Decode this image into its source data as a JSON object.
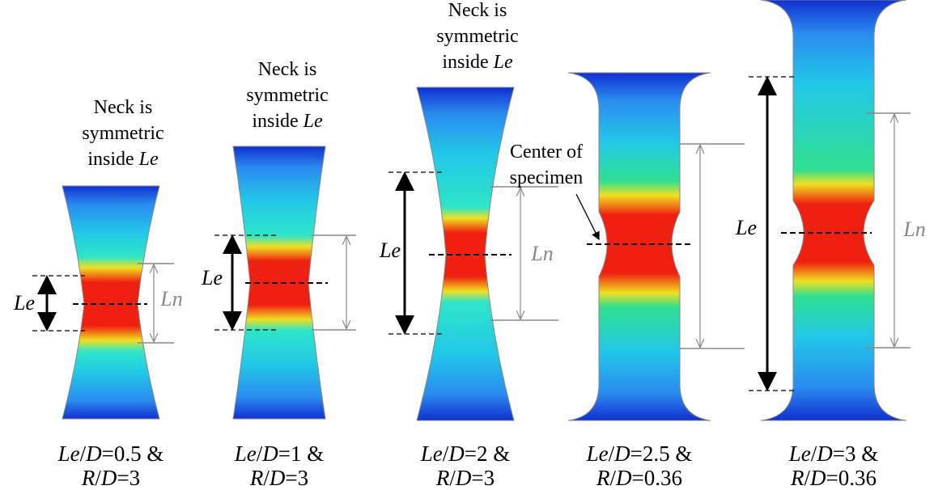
{
  "specimens": [
    {
      "note": [
        [
          {
            "text": "Neck is"
          }
        ],
        [
          {
            "text": "symmetric"
          }
        ],
        [
          {
            "text": "inside "
          },
          {
            "text": "Le",
            "italic": true
          }
        ]
      ],
      "le_label": "Le",
      "ln_label": "Ln",
      "caption": [
        [
          {
            "text": "Le",
            "italic": true
          },
          {
            "text": "/"
          },
          {
            "text": "D",
            "italic": true
          },
          {
            "text": "=0.5 &"
          }
        ],
        [
          {
            "text": "R",
            "italic": true
          },
          {
            "text": "/"
          },
          {
            "text": "D",
            "italic": true
          },
          {
            "text": "=3"
          }
        ]
      ]
    },
    {
      "note": [
        [
          {
            "text": "Neck is"
          }
        ],
        [
          {
            "text": "symmetric"
          }
        ],
        [
          {
            "text": "inside "
          },
          {
            "text": "Le",
            "italic": true
          }
        ]
      ],
      "le_label": "Le",
      "caption": [
        [
          {
            "text": "Le",
            "italic": true
          },
          {
            "text": "/"
          },
          {
            "text": "D",
            "italic": true
          },
          {
            "text": "=1 &"
          }
        ],
        [
          {
            "text": "R",
            "italic": true
          },
          {
            "text": "/"
          },
          {
            "text": "D",
            "italic": true
          },
          {
            "text": "=3"
          }
        ]
      ]
    },
    {
      "note": [
        [
          {
            "text": "Neck is"
          }
        ],
        [
          {
            "text": "symmetric"
          }
        ],
        [
          {
            "text": "inside "
          },
          {
            "text": "Le",
            "italic": true
          }
        ]
      ],
      "le_label": "Le",
      "ln_label": "Ln",
      "caption": [
        [
          {
            "text": "Le",
            "italic": true
          },
          {
            "text": "/"
          },
          {
            "text": "D",
            "italic": true
          },
          {
            "text": "=2 &"
          }
        ],
        [
          {
            "text": "R",
            "italic": true
          },
          {
            "text": "/"
          },
          {
            "text": "D",
            "italic": true
          },
          {
            "text": "=3"
          }
        ]
      ]
    },
    {
      "note": [
        [
          {
            "text": "Center of"
          }
        ],
        [
          {
            "text": "specimen"
          }
        ]
      ],
      "caption": [
        [
          {
            "text": "Le",
            "italic": true
          },
          {
            "text": "/"
          },
          {
            "text": "D",
            "italic": true
          },
          {
            "text": "=2.5 &"
          }
        ],
        [
          {
            "text": "R",
            "italic": true
          },
          {
            "text": "/"
          },
          {
            "text": "D",
            "italic": true
          },
          {
            "text": "=0.36"
          }
        ]
      ]
    },
    {
      "le_label": "Le",
      "ln_label": "Ln",
      "caption": [
        [
          {
            "text": "Le",
            "italic": true
          },
          {
            "text": "/"
          },
          {
            "text": "D",
            "italic": true
          },
          {
            "text": "=3 &"
          }
        ],
        [
          {
            "text": "R",
            "italic": true
          },
          {
            "text": "/"
          },
          {
            "text": "D",
            "italic": true
          },
          {
            "text": "=0.36"
          }
        ]
      ]
    }
  ]
}
